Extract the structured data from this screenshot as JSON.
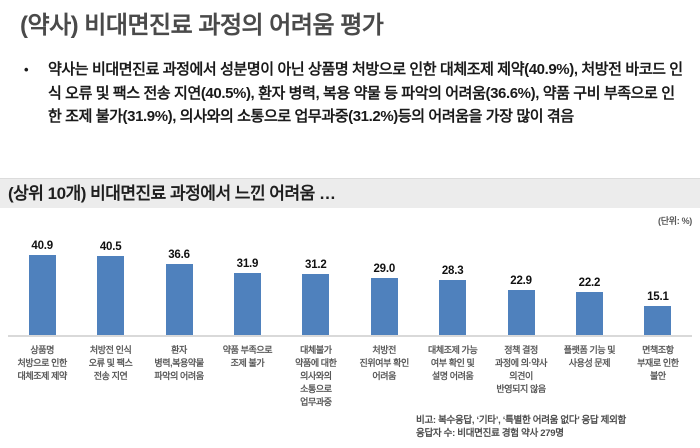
{
  "page": {
    "title": "(약사) 비대면진료 과정의 어려움 평가",
    "bullet_marker": "•",
    "bullet_text": "약사는 비대면진료 과정에서 성분명이 아닌 상품명 처방으로 인한 대체조제 제약(40.9%), 처방전 바코드 인식 오류 및 팩스 전송 지연(40.5%), 환자 병력, 복용 약물 등 파악의 어려움(36.6%), 약품 구비 부족으로 인한 조제 불가(31.9%), 의사와의 소통으로 업무과중(31.2%)등의 어려움을 가장 많이 겪음",
    "section_title": "(상위 10개) 비대면진료 과정에서 느낀 어려움 …",
    "unit_label": "(단위: %)",
    "footnote_line1": "비고: 복수응답, ‘기타’, ‘특별한 어려움 없다’ 응답 제외함",
    "footnote_line2": "응답자 수: 비대면진료 경험 약사 279명"
  },
  "chart_data": {
    "type": "bar",
    "title": "(상위 10개) 비대면진료 과정에서 느낀 어려움 …",
    "unit": "%",
    "categories": [
      "상품명\n처방으로 인한\n대체조제 제약",
      "처방전 인식\n오류 및 팩스\n전송 지연",
      "환자\n병력,복용약물\n파악의 어려움",
      "약품 부족으로\n조제 불가",
      "대체불가\n약품에 대한\n의사와의\n소통으로\n업무과중",
      "처방전\n진위여부 확인\n어려움",
      "대체조제 가능\n여부 확인 및\n설명 어려움",
      "정책 결정\n과정에 의·약사\n의견이\n반영되지 않음",
      "플랫폼 기능 및\n사용성 문제",
      "면책조항\n부재로 인한\n불안"
    ],
    "values": [
      40.9,
      40.5,
      36.6,
      31.9,
      31.2,
      29.0,
      28.3,
      22.9,
      22.2,
      15.1
    ],
    "bar_color": "#4f81bd",
    "axis_line_color": "#d9d9d9",
    "ylim": [
      0,
      45
    ],
    "grid": false,
    "legend": "none",
    "value_labels": "above bars, one decimal"
  }
}
